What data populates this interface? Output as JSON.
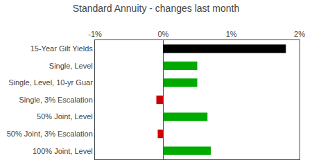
{
  "chart_data": {
    "type": "bar",
    "orientation": "horizontal",
    "title": "Standard Annuity - changes last month",
    "categories": [
      "100% Joint, Level",
      "50% Joint, 3% Escalation",
      "50% Joint, Level",
      "Single, 3% Escalation",
      "Single, Level, 10-yr Guar",
      "Single, Level",
      "15-Year Gilt Yields"
    ],
    "values": [
      0.7,
      -0.08,
      0.65,
      -0.1,
      0.5,
      0.5,
      1.8
    ],
    "colors": [
      "#00aa00",
      "#cc0000",
      "#00aa00",
      "#cc0000",
      "#00aa00",
      "#00aa00",
      "#000000"
    ],
    "xlim": [
      -1.0,
      2.0
    ],
    "xticks": [
      {
        "value": -1.0,
        "label": "-1%"
      },
      {
        "value": 0.0,
        "label": "0%"
      },
      {
        "value": 1.0,
        "label": "1%"
      },
      {
        "value": 2.0,
        "label": "2%"
      }
    ],
    "grid": false
  }
}
